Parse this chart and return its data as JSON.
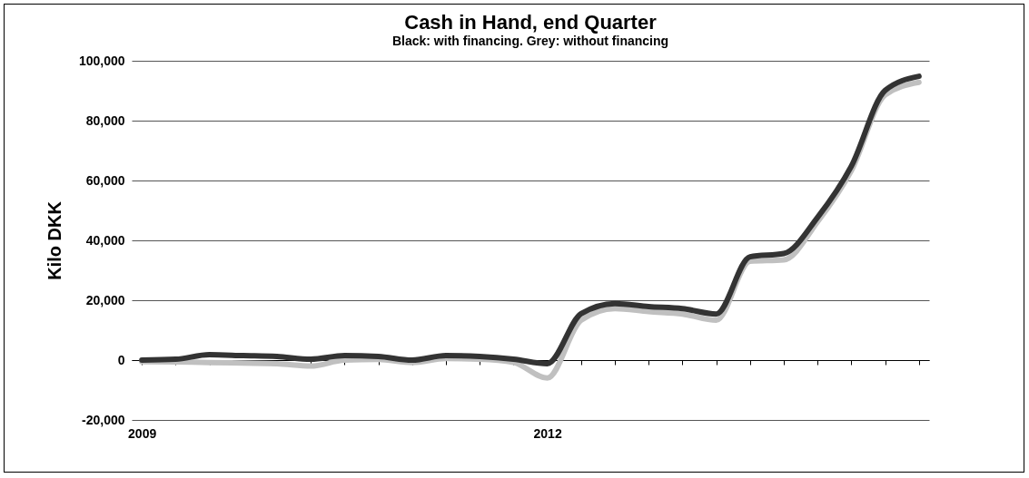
{
  "chart_data": {
    "type": "line",
    "title": "Cash in Hand, end Quarter",
    "subtitle": "Black: with financing.  Grey: without financing",
    "ylabel": "Kilo DKK",
    "categories": [
      "2009",
      null,
      null,
      null,
      null,
      null,
      null,
      null,
      null,
      null,
      null,
      null,
      "2012",
      null,
      null,
      null,
      null,
      null,
      null,
      null,
      null,
      null,
      null,
      null
    ],
    "series": [
      {
        "color": "#c0c0c0",
        "values": [
          -500,
          -600,
          -800,
          -1000,
          -1200,
          -2000,
          0,
          200,
          -800,
          500,
          300,
          -800,
          -6000,
          13300,
          17200,
          16200,
          15400,
          13300,
          33000,
          33500,
          46200,
          63300,
          88600,
          92800
        ]
      },
      {
        "color": "#333333",
        "values": [
          0,
          300,
          1800,
          1500,
          1200,
          300,
          1500,
          1200,
          0,
          1500,
          1200,
          300,
          -1200,
          15500,
          18900,
          17900,
          17200,
          15400,
          34500,
          35600,
          47700,
          64800,
          90100,
          94800
        ]
      }
    ],
    "ylim": [
      -20000,
      100000
    ],
    "yticks": [
      {
        "value": -20000,
        "label": "-20,000"
      },
      0,
      {
        "value": 20000,
        "label": "20,000"
      },
      {
        "value": 40000,
        "label": "40,000"
      },
      {
        "value": 60000,
        "label": "60,000"
      },
      {
        "value": 80000,
        "label": "80,000"
      },
      {
        "value": 100000,
        "label": "100,000"
      }
    ],
    "grid": "y",
    "marker": "none",
    "line_style": "solid"
  }
}
